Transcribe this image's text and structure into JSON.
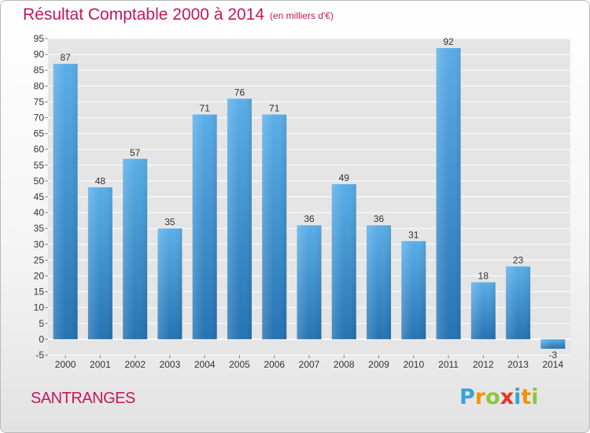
{
  "title": "Résultat Comptable 2000 à 2014",
  "subtitle": "(en milliers d'€)",
  "commune": "SANTRANGES",
  "logo": {
    "letters": [
      "P",
      "r",
      "o",
      "x",
      "i",
      "t",
      "i"
    ],
    "colors": [
      "#3aa0d8",
      "#f39200",
      "#8cc63f",
      "#e6332a",
      "#3aa0d8",
      "#f39200",
      "#8cc63f"
    ]
  },
  "colors": {
    "title": "#c2185b",
    "bar_top": "#5aaee8",
    "bar_bottom": "#2473b3",
    "plot_bg": "#e5e5e5",
    "grid": "#ffffff",
    "axis_text": "#333333"
  },
  "chart_data": {
    "type": "bar",
    "title": "Résultat Comptable 2000 à 2014",
    "subtitle": "(en milliers d'€)",
    "xlabel": "",
    "ylabel": "",
    "categories": [
      "2000",
      "2001",
      "2002",
      "2003",
      "2004",
      "2005",
      "2006",
      "2007",
      "2008",
      "2009",
      "2010",
      "2011",
      "2012",
      "2013",
      "2014"
    ],
    "values": [
      87,
      48,
      57,
      35,
      71,
      76,
      71,
      36,
      49,
      36,
      31,
      92,
      18,
      23,
      -3
    ],
    "value_labels": [
      "87",
      "48",
      "57",
      "35",
      "71",
      "76",
      "71",
      "36",
      "49",
      "36",
      "31",
      "92",
      "18",
      "23",
      "-3"
    ],
    "ylim": [
      -5,
      95
    ],
    "yticks": [
      -5,
      0,
      5,
      10,
      15,
      20,
      25,
      30,
      35,
      40,
      45,
      50,
      55,
      60,
      65,
      70,
      75,
      80,
      85,
      90,
      95
    ],
    "grid": true,
    "legend": "none"
  }
}
